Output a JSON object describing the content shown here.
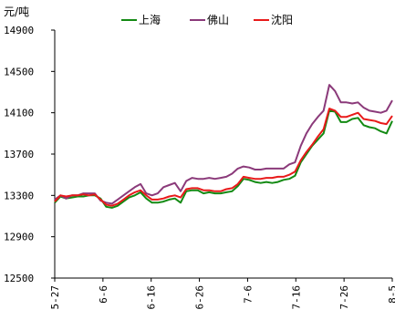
{
  "chart_data": {
    "type": "line",
    "title": "",
    "xlabel": "",
    "ylabel": "元/吨",
    "ylim": [
      12500,
      14900
    ],
    "yticks": [
      "14900",
      "14500",
      "14100",
      "13700",
      "13300",
      "12900",
      "12500"
    ],
    "xticks": [
      "5-27",
      "6-6",
      "6-16",
      "6-26",
      "7-6",
      "7-16",
      "7-26",
      "8-5"
    ],
    "grid": false,
    "legend_position": "top",
    "series": [
      {
        "name": "上海",
        "color": "#138a13",
        "values": [
          13230,
          13290,
          13270,
          13280,
          13290,
          13290,
          13300,
          13300,
          13270,
          13190,
          13180,
          13200,
          13240,
          13280,
          13300,
          13330,
          13270,
          13230,
          13230,
          13240,
          13260,
          13270,
          13230,
          13340,
          13350,
          13350,
          13320,
          13330,
          13320,
          13320,
          13330,
          13340,
          13390,
          13460,
          13450,
          13430,
          13420,
          13430,
          13420,
          13430,
          13450,
          13460,
          13490,
          13620,
          13700,
          13780,
          13840,
          13900,
          14120,
          14110,
          14010,
          14010,
          14040,
          14050,
          13980,
          13960,
          13950,
          13920,
          13900,
          14020
        ]
      },
      {
        "name": "佛山",
        "color": "#8b3a7a",
        "values": [
          13260,
          13300,
          13270,
          13300,
          13300,
          13320,
          13320,
          13320,
          13250,
          13230,
          13220,
          13260,
          13300,
          13340,
          13380,
          13410,
          13320,
          13300,
          13320,
          13380,
          13400,
          13420,
          13340,
          13440,
          13470,
          13460,
          13460,
          13470,
          13460,
          13470,
          13480,
          13510,
          13560,
          13580,
          13570,
          13550,
          13550,
          13560,
          13560,
          13560,
          13560,
          13600,
          13620,
          13780,
          13900,
          13990,
          14060,
          14120,
          14370,
          14310,
          14200,
          14200,
          14190,
          14200,
          14150,
          14120,
          14110,
          14100,
          14120,
          14220
        ]
      },
      {
        "name": "沈阳",
        "color": "#e81a1a",
        "values": [
          13240,
          13300,
          13290,
          13300,
          13300,
          13310,
          13300,
          13310,
          13260,
          13210,
          13200,
          13220,
          13260,
          13300,
          13330,
          13350,
          13300,
          13260,
          13260,
          13270,
          13290,
          13300,
          13280,
          13360,
          13370,
          13370,
          13350,
          13350,
          13340,
          13340,
          13360,
          13370,
          13410,
          13480,
          13470,
          13460,
          13460,
          13470,
          13470,
          13480,
          13480,
          13500,
          13530,
          13640,
          13720,
          13790,
          13870,
          13940,
          14140,
          14120,
          14060,
          14060,
          14080,
          14100,
          14040,
          14030,
          14020,
          14000,
          13990,
          14070
        ]
      }
    ]
  }
}
